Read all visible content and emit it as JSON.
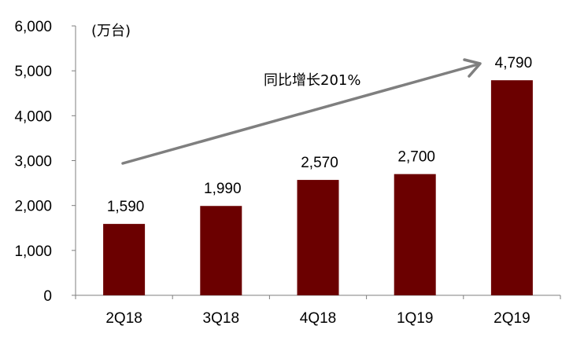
{
  "chart_data": {
    "type": "bar",
    "categories": [
      "2Q18",
      "3Q18",
      "4Q18",
      "1Q19",
      "2Q19"
    ],
    "values": [
      1590,
      1990,
      2570,
      2700,
      4790
    ],
    "data_labels": [
      "1,590",
      "1,990",
      "2,570",
      "2,700",
      "4,790"
    ],
    "y_ticks": [
      "0",
      "1,000",
      "2,000",
      "3,000",
      "4,000",
      "5,000",
      "6,000"
    ],
    "ylim": [
      0,
      6000
    ],
    "unit_label": "(万台)",
    "annotation": "同比增长201%",
    "bar_color": "#6b0000",
    "arrow_color": "#7f7f7f",
    "grid": false,
    "legend": "none"
  }
}
